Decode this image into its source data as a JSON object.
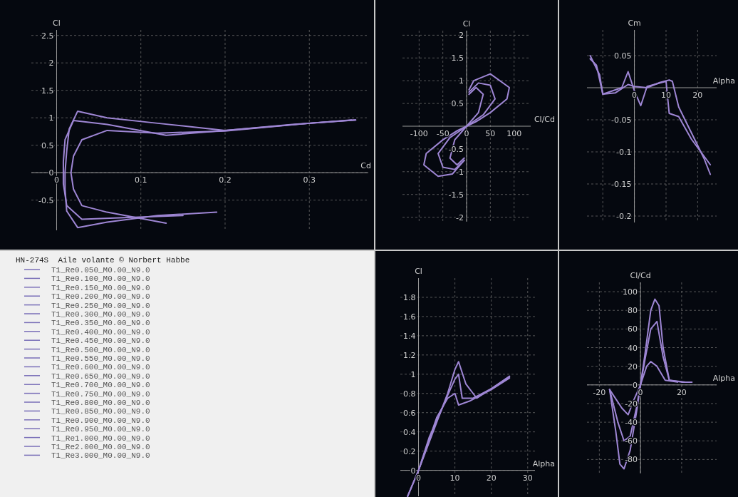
{
  "chart_data": [
    {
      "type": "line",
      "xlabel": "Cd",
      "ylabel": "Cl",
      "xlim": [
        -0.03,
        0.37
      ],
      "ylim": [
        -1.05,
        2.6
      ],
      "xticks": [
        0,
        0.1,
        0.2,
        0.3
      ],
      "yticks": [
        -0.5,
        0,
        0.5,
        1.0,
        1.5,
        2.0,
        2.5
      ],
      "grid": true,
      "series": [
        {
          "color": "#9e86d4",
          "x": [
            0.19,
            0.12,
            0.06,
            0.025,
            0.012,
            0.01,
            0.01,
            0.012,
            0.015,
            0.025,
            0.06,
            0.12,
            0.2,
            0.28,
            0.355
          ],
          "values": [
            -0.72,
            -0.78,
            -0.9,
            -1.0,
            -0.7,
            -0.3,
            0,
            0.4,
            0.8,
            1.12,
            1.0,
            0.9,
            0.77,
            0.88,
            0.96
          ]
        },
        {
          "color": "#9e86d4",
          "x": [
            0.15,
            0.08,
            0.03,
            0.012,
            0.008,
            0.008,
            0.01,
            0.02,
            0.06,
            0.13,
            0.2,
            0.3,
            0.355
          ],
          "values": [
            -0.78,
            -0.82,
            -0.85,
            -0.6,
            -0.2,
            0.2,
            0.6,
            0.95,
            0.88,
            0.68,
            0.77,
            0.9,
            0.96
          ]
        },
        {
          "color": "#9e86d4",
          "x": [
            0.13,
            0.06,
            0.03,
            0.02,
            0.017,
            0.02,
            0.03,
            0.06,
            0.12,
            0.2,
            0.3,
            0.35
          ],
          "values": [
            -0.92,
            -0.72,
            -0.6,
            -0.3,
            0,
            0.3,
            0.6,
            0.77,
            0.72,
            0.76,
            0.9,
            0.96
          ]
        }
      ]
    },
    {
      "type": "line",
      "xlabel": "Cl/Cd",
      "ylabel": "Cl",
      "xlim": [
        -135,
        135
      ],
      "ylim": [
        -2.1,
        2.1
      ],
      "xticks": [
        -100,
        -50,
        0,
        50,
        100
      ],
      "yticks": [
        -2.0,
        -1.5,
        -1.0,
        -0.5,
        0.5,
        1.0,
        1.5,
        2.0
      ],
      "grid": true,
      "series": [
        {
          "color": "#9e86d4",
          "x": [
            -5,
            -30,
            -60,
            -90,
            -85,
            -50,
            -20,
            0,
            20,
            50,
            85,
            90,
            50,
            15,
            5
          ],
          "values": [
            -0.75,
            -1.05,
            -1.1,
            -0.85,
            -0.6,
            -0.3,
            -0.1,
            0,
            0.1,
            0.3,
            0.6,
            0.85,
            1.15,
            1.0,
            0.8
          ]
        },
        {
          "color": "#9e86d4",
          "x": [
            -5,
            -25,
            -50,
            -60,
            -35,
            0,
            35,
            60,
            50,
            25,
            5
          ],
          "values": [
            -0.75,
            -0.95,
            -0.9,
            -0.6,
            -0.25,
            0,
            0.25,
            0.6,
            0.9,
            0.95,
            0.75
          ]
        },
        {
          "color": "#9e86d4",
          "x": [
            -5,
            -20,
            -35,
            -25,
            0,
            25,
            35,
            20,
            5
          ],
          "values": [
            -0.7,
            -0.85,
            -0.7,
            -0.3,
            0,
            0.3,
            0.7,
            0.85,
            0.7
          ]
        }
      ]
    },
    {
      "type": "line",
      "xlabel": "Alpha",
      "ylabel": "Cm",
      "xlim": [
        -15,
        26
      ],
      "ylim": [
        -0.21,
        0.09
      ],
      "xticks": [
        {
          "value": -10,
          "label": null
        },
        0,
        10,
        20
      ],
      "yticks": [
        -0.2,
        -0.15,
        -0.1,
        -0.05,
        0.05
      ],
      "grid": true,
      "series": [
        {
          "color": "#9e86d4",
          "x": [
            -14,
            -11,
            -10,
            -6,
            -2,
            0,
            4,
            8,
            11,
            12,
            14,
            18,
            22,
            24
          ],
          "values": [
            0.05,
            0.02,
            -0.01,
            -0.008,
            0.005,
            0.002,
            0,
            0.008,
            0.012,
            0.01,
            -0.03,
            -0.07,
            -0.11,
            -0.135
          ]
        },
        {
          "color": "#9e86d4",
          "x": [
            -14,
            -12,
            -10,
            -4,
            -2,
            0,
            2,
            4,
            10,
            11,
            14,
            18,
            24
          ],
          "values": [
            0.045,
            0.035,
            -0.01,
            0,
            0.025,
            -0.005,
            -0.028,
            0.002,
            0.01,
            -0.04,
            -0.045,
            -0.08,
            -0.12
          ]
        }
      ]
    },
    {
      "type": "other",
      "title": "HN-274S  Aile volante © Norbert Habbe",
      "annotations": [
        "T1_Re0.050_M0.00_N9.0",
        "T1_Re0.100_M0.00_N9.0",
        "T1_Re0.150_M0.00_N9.0",
        "T1_Re0.200_M0.00_N9.0",
        "T1_Re0.250_M0.00_N9.0",
        "T1_Re0.300_M0.00_N9.0",
        "T1_Re0.350_M0.00_N9.0",
        "T1_Re0.400_M0.00_N9.0",
        "T1_Re0.450_M0.00_N9.0",
        "T1_Re0.500_M0.00_N9.0",
        "T1_Re0.550_M0.00_N9.0",
        "T1_Re0.600_M0.00_N9.0",
        "T1_Re0.650_M0.00_N9.0",
        "T1_Re0.700_M0.00_N9.0",
        "T1_Re0.750_M0.00_N9.0",
        "T1_Re0.800_M0.00_N9.0",
        "T1_Re0.850_M0.00_N9.0",
        "T1_Re0.900_M0.00_N9.0",
        "T1_Re0.950_M0.00_N9.0",
        "T1_Re1.000_M0.00_N9.0",
        "T1_Re2.000_M0.00_N9.0",
        "T1_Re3.000_M0.00_N9.0"
      ]
    },
    {
      "type": "line",
      "xlabel": "Alpha",
      "ylabel": "Cl",
      "xlim": [
        -5,
        32
      ],
      "ylim": [
        -0.27,
        2.0
      ],
      "xticks": [
        0,
        10,
        20,
        30
      ],
      "yticks": [
        0,
        0.2,
        0.4,
        0.6,
        0.8,
        1.0,
        1.2,
        1.4,
        1.6,
        1.8
      ],
      "grid": true,
      "series": [
        {
          "color": "#9e86d4",
          "x": [
            -3,
            0,
            5,
            8,
            10,
            11,
            13,
            16,
            20,
            25
          ],
          "values": [
            -0.27,
            0,
            0.5,
            0.8,
            1.05,
            1.13,
            0.9,
            0.75,
            0.85,
            0.98
          ]
        },
        {
          "color": "#9e86d4",
          "x": [
            -3,
            0,
            3,
            6,
            8,
            10,
            11,
            12,
            15,
            20,
            25
          ],
          "values": [
            -0.27,
            0,
            0.35,
            0.6,
            0.78,
            0.95,
            1.0,
            0.75,
            0.75,
            0.85,
            0.97
          ]
        },
        {
          "color": "#9e86d4",
          "x": [
            0,
            5,
            8,
            10,
            11,
            14,
            20,
            25
          ],
          "values": [
            0,
            0.55,
            0.75,
            0.8,
            0.68,
            0.72,
            0.84,
            0.96
          ]
        }
      ]
    },
    {
      "type": "line",
      "xlabel": "Alpha",
      "ylabel": "Cl/Cd",
      "xlim": [
        -26,
        37
      ],
      "ylim": [
        -95,
        110
      ],
      "xticks": [
        -20,
        0,
        20
      ],
      "yticks": [
        -80,
        -60,
        -40,
        -20,
        0,
        20,
        40,
        60,
        80,
        100
      ],
      "grid": true,
      "series": [
        {
          "color": "#9e86d4",
          "x": [
            -15,
            -12,
            -10,
            -8,
            -5,
            -2,
            0,
            2,
            5,
            7,
            9,
            11,
            14,
            20,
            25
          ],
          "values": [
            -5,
            -50,
            -85,
            -90,
            -70,
            -30,
            0,
            30,
            80,
            92,
            85,
            40,
            5,
            3,
            3
          ]
        },
        {
          "color": "#9e86d4",
          "x": [
            -15,
            -11,
            -8,
            -5,
            -2,
            0,
            2,
            5,
            8,
            11,
            14,
            22
          ],
          "values": [
            -5,
            -40,
            -60,
            -55,
            -25,
            0,
            25,
            60,
            68,
            30,
            5,
            3
          ]
        },
        {
          "color": "#9e86d4",
          "x": [
            -15,
            -9,
            -6,
            -3,
            0,
            3,
            5,
            8,
            12,
            18
          ],
          "values": [
            -5,
            -25,
            -32,
            -15,
            0,
            20,
            25,
            20,
            5,
            3
          ]
        }
      ]
    }
  ]
}
